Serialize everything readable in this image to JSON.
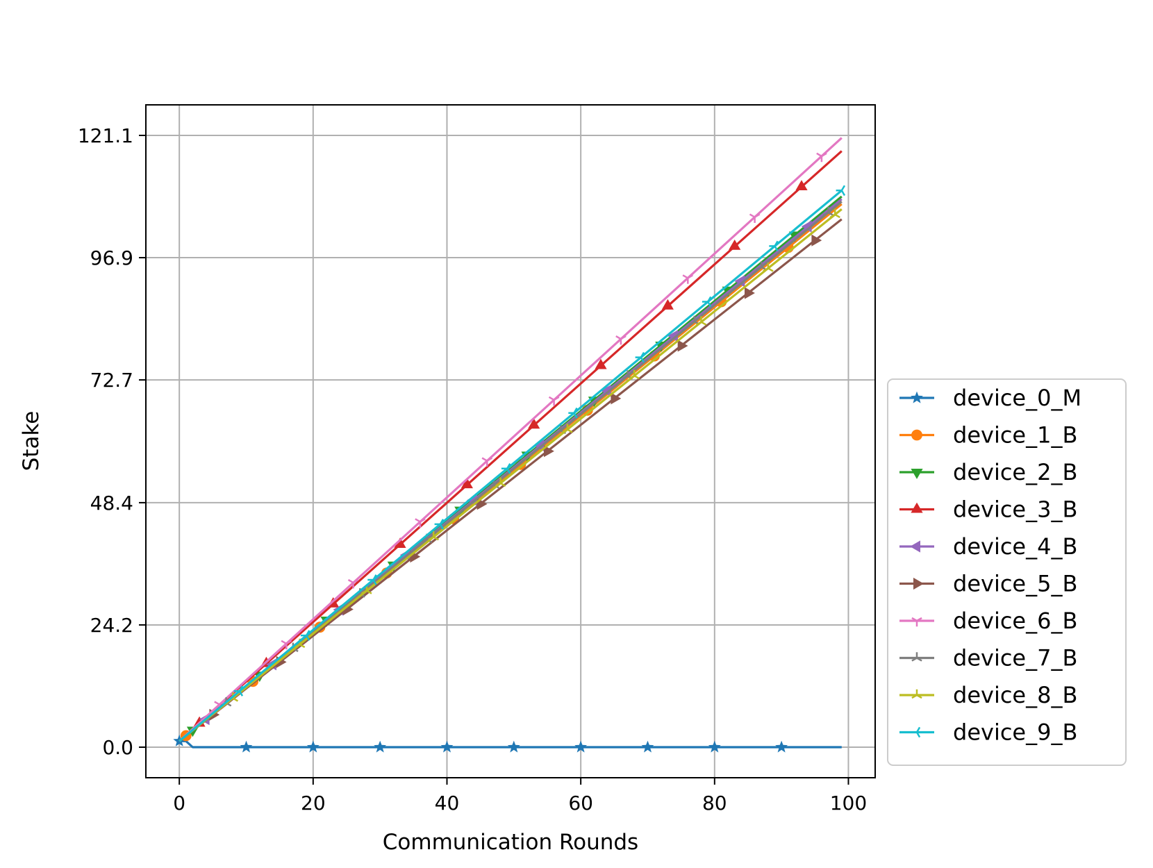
{
  "chart_data": {
    "type": "line",
    "title": "",
    "xlabel": "Communication Rounds",
    "ylabel": "Stake",
    "xlim": [
      -5,
      104
    ],
    "ylim": [
      -6.05,
      127.15
    ],
    "xticks": [
      0,
      20,
      40,
      60,
      80,
      100
    ],
    "yticks": [
      0.0,
      24.2,
      48.4,
      72.7,
      96.9,
      121.1
    ],
    "ytick_labels": [
      "0.0",
      "24.2",
      "48.4",
      "72.7",
      "96.9",
      "121.1"
    ],
    "grid": true,
    "legend_placement": "outside right, lower",
    "colors": {
      "device_0_M": "#1f77b4",
      "device_1_B": "#ff7f0e",
      "device_2_B": "#2ca02c",
      "device_3_B": "#d62728",
      "device_4_B": "#9467bd",
      "device_5_B": "#8c564b",
      "device_6_B": "#e377c2",
      "device_7_B": "#7f7f7f",
      "device_8_B": "#bcbd22",
      "device_9_B": "#17becf"
    },
    "series": [
      {
        "name": "device_0_M",
        "marker": "star",
        "x": [
          0,
          1,
          2,
          99
        ],
        "y": [
          1.2,
          1.2,
          0.0,
          0.0
        ],
        "marker_start": 0,
        "marker_every": 10
      },
      {
        "name": "device_1_B",
        "marker": "circle",
        "x": [
          0,
          99
        ],
        "y": [
          1.2,
          107.5
        ],
        "marker_start": 1,
        "marker_every": 10
      },
      {
        "name": "device_2_B",
        "marker": "triangle-down",
        "x": [
          0,
          99
        ],
        "y": [
          1.2,
          109.0
        ],
        "marker_start": 2,
        "marker_every": 10
      },
      {
        "name": "device_3_B",
        "marker": "triangle-up",
        "x": [
          0,
          99
        ],
        "y": [
          1.2,
          118.0
        ],
        "marker_start": 3,
        "marker_every": 10
      },
      {
        "name": "device_4_B",
        "marker": "triangle-left",
        "x": [
          0,
          99
        ],
        "y": [
          1.2,
          108.5
        ],
        "marker_start": 4,
        "marker_every": 10
      },
      {
        "name": "device_5_B",
        "marker": "triangle-right",
        "x": [
          0,
          99
        ],
        "y": [
          1.2,
          104.5
        ],
        "marker_start": 5,
        "marker_every": 10
      },
      {
        "name": "device_6_B",
        "marker": "tri-down",
        "x": [
          0,
          99
        ],
        "y": [
          1.2,
          120.6
        ],
        "marker_start": 6,
        "marker_every": 10
      },
      {
        "name": "device_7_B",
        "marker": "tri-up",
        "x": [
          0,
          99
        ],
        "y": [
          1.2,
          108.0
        ],
        "marker_start": 7,
        "marker_every": 10
      },
      {
        "name": "device_8_B",
        "marker": "tri-up",
        "x": [
          0,
          99
        ],
        "y": [
          1.2,
          106.5
        ],
        "marker_start": 8,
        "marker_every": 10
      },
      {
        "name": "device_9_B",
        "marker": "tri-left",
        "x": [
          0,
          99
        ],
        "y": [
          1.2,
          110.2
        ],
        "marker_start": 9,
        "marker_every": 10
      }
    ]
  }
}
